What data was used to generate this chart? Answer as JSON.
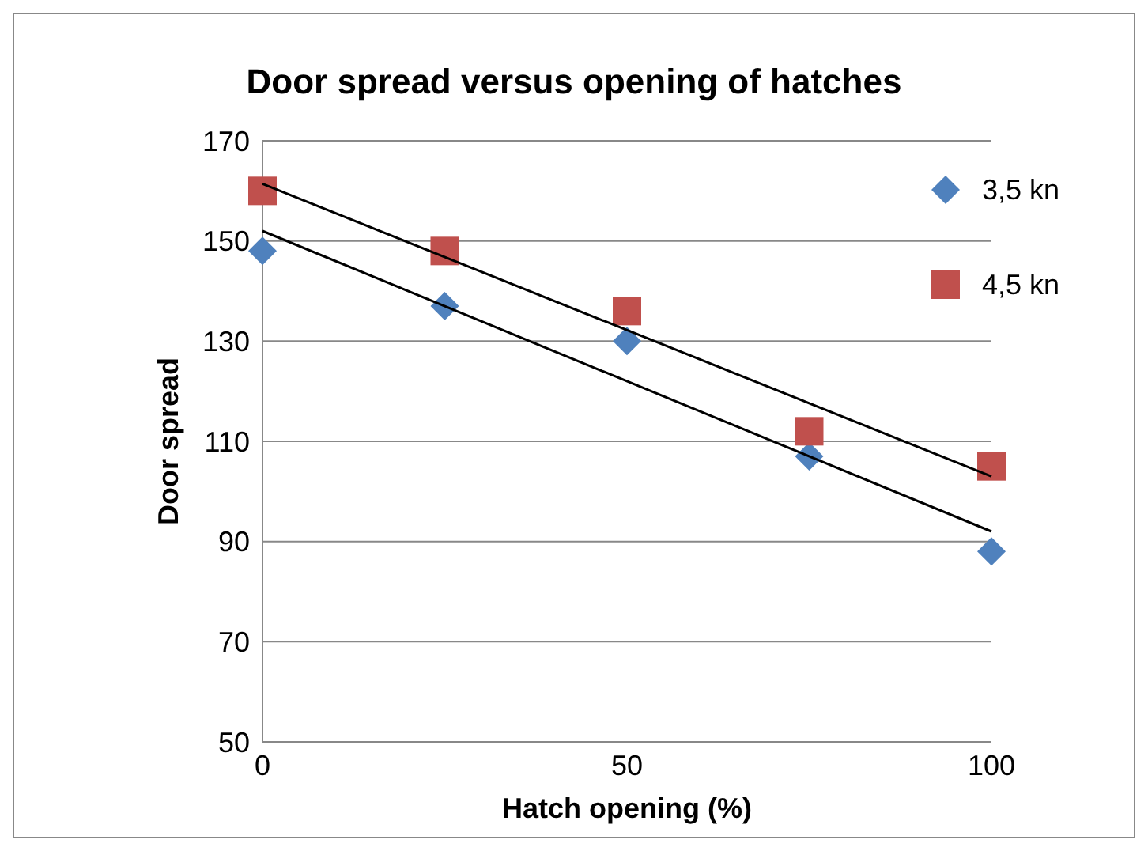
{
  "chart_data": {
    "type": "scatter",
    "title": "Door spread versus opening of hatches",
    "xlabel": "Hatch opening (%)",
    "ylabel": "Door spread",
    "xlim": [
      0,
      100
    ],
    "xticks": [
      0,
      50,
      100
    ],
    "ylim": [
      50,
      170
    ],
    "yticks": [
      50,
      70,
      90,
      110,
      130,
      150,
      170
    ],
    "grid": "y",
    "legend": "top right",
    "series": [
      {
        "name": "3,5 kn",
        "marker": "diamond",
        "color": "#4f81bd",
        "x": [
          0,
          25,
          50,
          75,
          100
        ],
        "values": [
          148,
          137,
          130,
          107,
          88
        ]
      },
      {
        "name": "4,5 kn",
        "marker": "square",
        "color": "#c0504d",
        "x": [
          0,
          25,
          50,
          75,
          100
        ],
        "values": [
          160,
          148,
          136,
          112,
          105
        ]
      },
      {
        "type": "line",
        "marker": "none",
        "color": "#000000",
        "x": [
          0,
          100
        ],
        "values": [
          152,
          92
        ]
      },
      {
        "type": "line",
        "marker": "none",
        "color": "#000000",
        "x": [
          0,
          100
        ],
        "values": [
          161.4,
          103
        ]
      }
    ]
  }
}
